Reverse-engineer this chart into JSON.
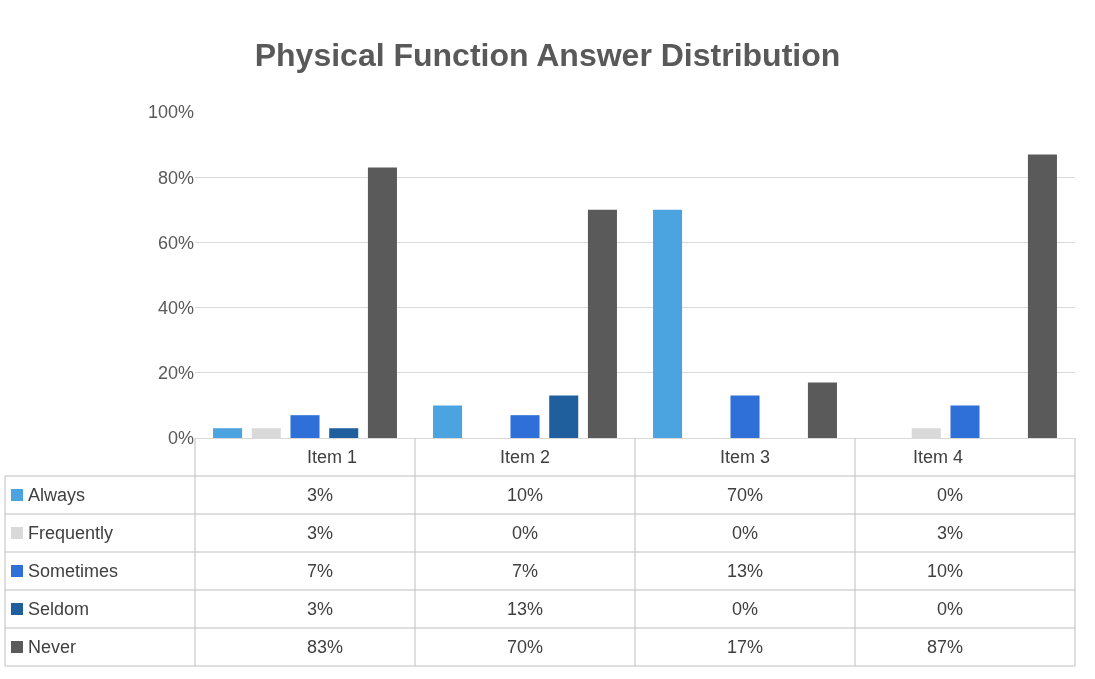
{
  "chart_data": {
    "type": "bar",
    "title": "Physical Function Answer Distribution",
    "categories": [
      "Item 1",
      "Item 2",
      "Item 3",
      "Item 4"
    ],
    "series": [
      {
        "name": "Always",
        "color": "#4ba3e0",
        "values": [
          3,
          10,
          70,
          0
        ]
      },
      {
        "name": "Frequently",
        "color": "#d9d9d9",
        "values": [
          3,
          0,
          0,
          3
        ]
      },
      {
        "name": "Sometimes",
        "color": "#2e6fd8",
        "values": [
          7,
          7,
          13,
          10
        ]
      },
      {
        "name": "Seldom",
        "color": "#1f5f9e",
        "values": [
          3,
          13,
          0,
          0
        ]
      },
      {
        "name": "Never",
        "color": "#5a5a5a",
        "values": [
          83,
          70,
          17,
          87
        ]
      }
    ],
    "value_labels": [
      [
        "3%",
        "10%",
        "70%",
        "0%"
      ],
      [
        "3%",
        "0%",
        "0%",
        "3%"
      ],
      [
        "7%",
        "7%",
        "13%",
        "10%"
      ],
      [
        "3%",
        "13%",
        "0%",
        "0%"
      ],
      [
        "83%",
        "70%",
        "17%",
        "87%"
      ]
    ],
    "ylim": [
      0,
      100
    ],
    "yticks": [
      {
        "value": 0,
        "label": "0%"
      },
      {
        "value": 20,
        "label": "20%"
      },
      {
        "value": 40,
        "label": "40%"
      },
      {
        "value": 60,
        "label": "60%"
      },
      {
        "value": 80,
        "label": "80%"
      },
      {
        "value": 100,
        "label": "100%"
      }
    ],
    "grid": "y",
    "legend": "bottom left"
  }
}
